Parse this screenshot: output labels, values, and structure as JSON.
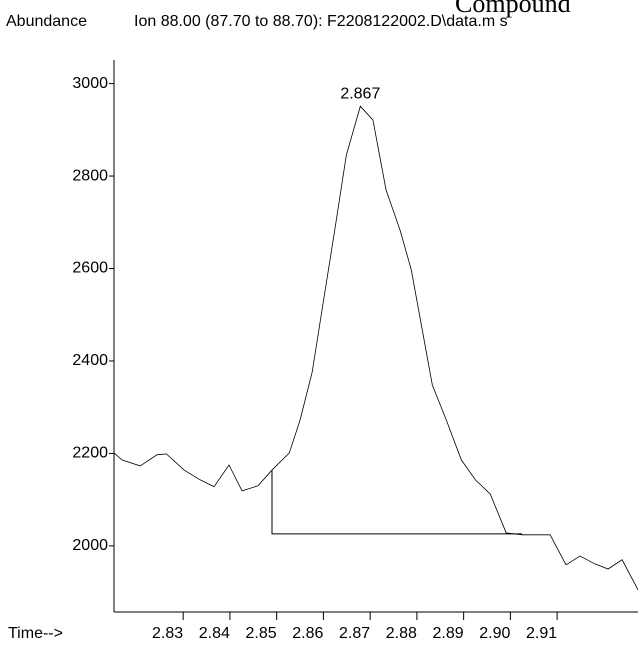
{
  "chart_data": {
    "type": "line",
    "title": "Ion  88.00 (87.70 to 88.70): F2208122002.D\\data.m s",
    "corner_text": "Compound",
    "y_label": "Abundance",
    "x_label": "Time-->",
    "xlim": [
      2.8152,
      2.9273
    ],
    "xticks": [
      2.83,
      2.84,
      2.85,
      2.86,
      2.87,
      2.88,
      2.89,
      {
        "value": 2.9,
        "label": "2.90"
      },
      2.91
    ],
    "ylim": [
      1857,
      3051
    ],
    "yticks": [
      2000,
      2200,
      2400,
      2600,
      2800,
      3000
    ],
    "color": "#000000",
    "x": [
      2.8152,
      2.8169,
      2.8208,
      2.8244,
      2.8264,
      2.8302,
      2.8336,
      2.8366,
      2.8398,
      2.8426,
      2.846,
      2.849,
      2.8527,
      2.855,
      2.8576,
      2.8597,
      2.8625,
      2.8649,
      2.8679,
      2.8706,
      2.8734,
      2.8764,
      2.8788,
      2.8833,
      2.8863,
      2.8895,
      2.8925,
      2.8957,
      2.8991,
      2.9025,
      2.9085,
      2.9119,
      2.9149,
      2.9181,
      2.9209,
      2.9239,
      2.9273
    ],
    "values": [
      2201,
      2186,
      2173,
      2197,
      2199,
      2164,
      2143,
      2128,
      2175,
      2119,
      2130,
      2164,
      2201,
      2272,
      2376,
      2510,
      2688,
      2845,
      2951,
      2921,
      2770,
      2683,
      2597,
      2348,
      2272,
      2186,
      2143,
      2112,
      2028,
      2024,
      2024,
      1959,
      1978,
      1961,
      1950,
      1970,
      1905
    ],
    "baseline": {
      "x": [
        2.849,
        2.849,
        2.9025
      ],
      "values": [
        2164,
        2026,
        2026
      ]
    },
    "peak_label": {
      "text": "2.867",
      "x": 2.8679,
      "y": 2951
    }
  }
}
